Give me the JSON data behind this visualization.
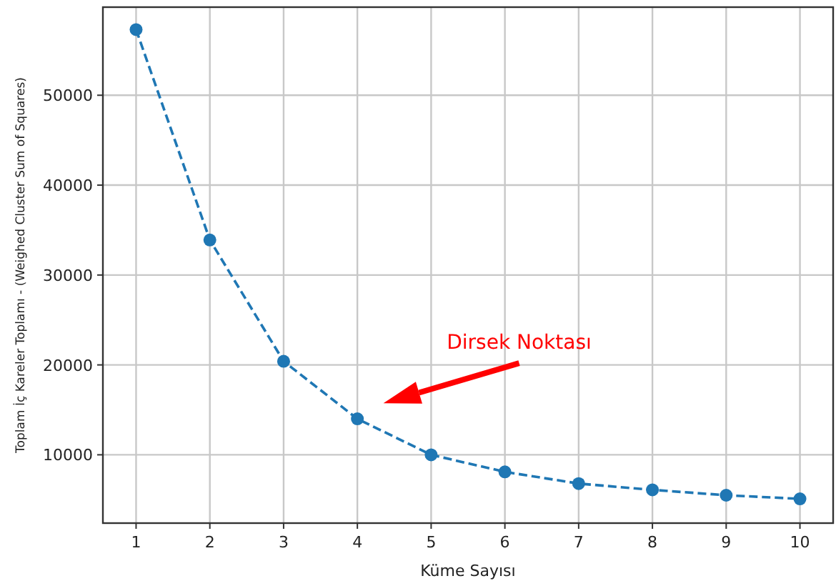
{
  "chart_data": {
    "type": "line",
    "xlabel": "Küme Sayısı",
    "ylabel": "Toplam İç Kareler Toplamı - (Weighed Cluster Sum of Squares)",
    "x": [
      1,
      2,
      3,
      4,
      5,
      6,
      7,
      8,
      9,
      10
    ],
    "series": [
      {
        "color": "#1f77b4",
        "values": [
          57300,
          33900,
          20400,
          14000,
          10000,
          8100,
          6800,
          6100,
          5500,
          5100
        ]
      }
    ],
    "xlim": [
      0.55,
      10.45
    ],
    "xticks": [
      1,
      2,
      3,
      4,
      5,
      6,
      7,
      8,
      9,
      10
    ],
    "ylim": [
      2400,
      59800
    ],
    "yticks": [
      10000,
      20000,
      30000,
      40000,
      50000
    ],
    "grid": true,
    "marker": "circle",
    "line_style": "dashed",
    "annotations": [
      "Dirsek Noktası"
    ]
  }
}
